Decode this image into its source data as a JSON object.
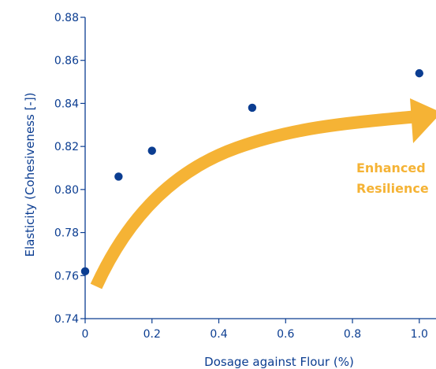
{
  "chart_data": {
    "type": "scatter",
    "title": "",
    "xlabel": "Dosage against Flour (%)",
    "ylabel": "Elasticity (Cohesiveness [-])",
    "xlim": [
      0,
      1.05
    ],
    "ylim": [
      0.74,
      0.88
    ],
    "xticks": [
      0,
      0.2,
      0.4,
      0.6,
      0.8,
      1.0
    ],
    "xtick_labels": [
      "0",
      "0.2",
      "0.4",
      "0.6",
      "0.8",
      "1.0"
    ],
    "yticks": [
      0.74,
      0.76,
      0.78,
      0.8,
      0.82,
      0.84,
      0.86,
      0.88
    ],
    "ytick_labels": [
      "0.74",
      "0.76",
      "0.78",
      "0.80",
      "0.82",
      "0.84",
      "0.86",
      "0.88"
    ],
    "grid": false,
    "series": [
      {
        "x": [
          0,
          0.1,
          0.2,
          0.5,
          1.0
        ],
        "y": [
          0.762,
          0.806,
          0.818,
          0.838,
          0.854
        ],
        "color": "#0b3d91"
      }
    ],
    "annotation": {
      "lines": [
        "Enhanced",
        "Resilience"
      ],
      "arrow_color": "#f5b335",
      "text_color": "#f5b335"
    }
  },
  "colors": {
    "axis": "#0b3d91",
    "text": "#0b3d91",
    "points": "#0b3d91",
    "arrow": "#f5b335"
  }
}
